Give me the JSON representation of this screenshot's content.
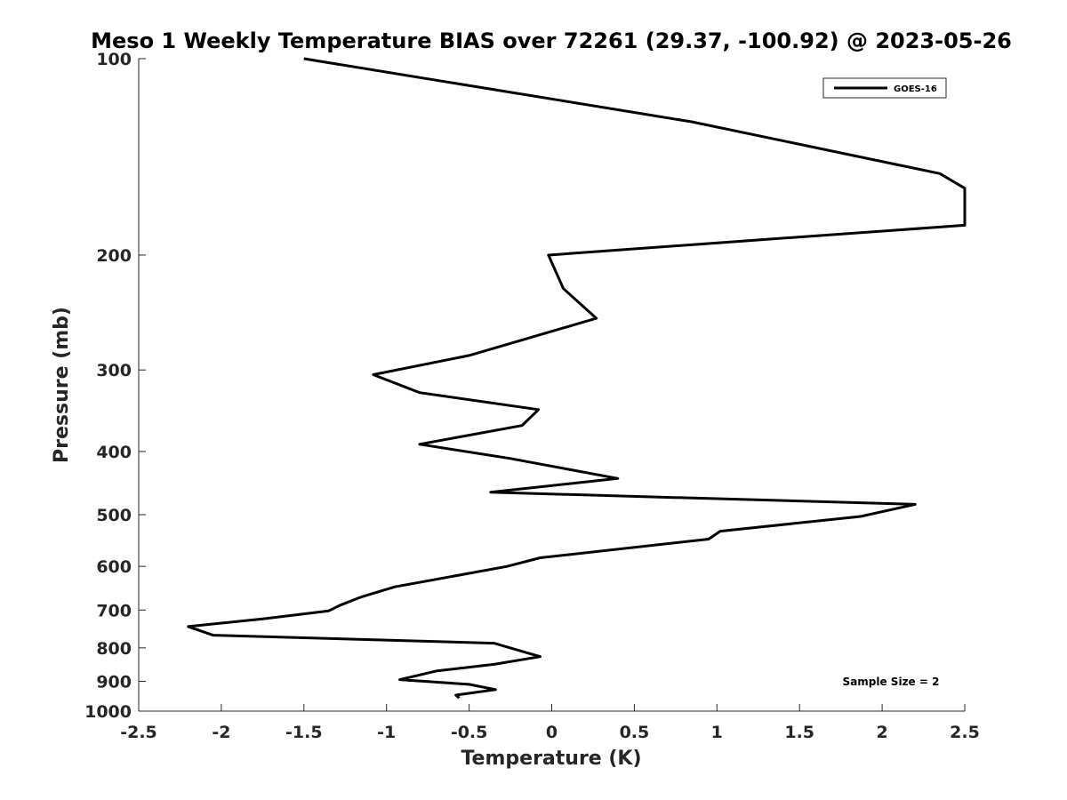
{
  "chart_data": {
    "type": "line",
    "title": "Meso 1 Weekly Temperature BIAS over 72261 (29.37, -100.92) @ 2023-05-26",
    "xlabel": "Temperature (K)",
    "ylabel": "Pressure (mb)",
    "xlim": [
      -2.5,
      2.5
    ],
    "ylim": [
      100,
      1000
    ],
    "yscale": "log",
    "y_reversed": true,
    "grid": false,
    "legend_position": "top-right",
    "x_ticks": [
      -2.5,
      -2,
      -1.5,
      -1,
      -0.5,
      0,
      0.5,
      1,
      1.5,
      2,
      2.5
    ],
    "x_tick_labels": [
      "-2.5",
      "-2",
      "-1.5",
      "-1",
      "-0.5",
      "0",
      "0.5",
      "1",
      "1.5",
      "2",
      "2.5"
    ],
    "y_ticks": [
      100,
      200,
      300,
      400,
      500,
      600,
      700,
      800,
      900,
      1000
    ],
    "y_tick_labels": [
      "100",
      "200",
      "300",
      "400",
      "500",
      "600",
      "700",
      "800",
      "900",
      "1000"
    ],
    "series": [
      {
        "name": "GOES-16",
        "color": "#000000",
        "points": [
          [
            -1.5,
            100
          ],
          [
            0.85,
            125
          ],
          [
            2.35,
            150
          ],
          [
            2.5,
            158
          ],
          [
            2.5,
            180
          ],
          [
            1.2,
            190
          ],
          [
            -0.02,
            200
          ],
          [
            0.07,
            225
          ],
          [
            0.27,
            250
          ],
          [
            -0.5,
            285
          ],
          [
            -1.08,
            305
          ],
          [
            -0.8,
            325
          ],
          [
            -0.08,
            345
          ],
          [
            -0.18,
            365
          ],
          [
            -0.8,
            390
          ],
          [
            -0.25,
            410
          ],
          [
            0.4,
            440
          ],
          [
            -0.37,
            462
          ],
          [
            2.2,
            482
          ],
          [
            1.87,
            503
          ],
          [
            1.02,
            530
          ],
          [
            0.95,
            545
          ],
          [
            -0.07,
            582
          ],
          [
            -0.27,
            600
          ],
          [
            -0.95,
            645
          ],
          [
            -1.15,
            668
          ],
          [
            -1.28,
            688
          ],
          [
            -1.35,
            702
          ],
          [
            -1.75,
            722
          ],
          [
            -2.2,
            742
          ],
          [
            -2.05,
            765
          ],
          [
            -0.35,
            787
          ],
          [
            -0.07,
            825
          ],
          [
            -0.35,
            848
          ],
          [
            -0.7,
            868
          ],
          [
            -0.92,
            895
          ],
          [
            -0.5,
            910
          ],
          [
            -0.34,
            927
          ],
          [
            -0.58,
            945
          ],
          [
            -0.56,
            955
          ]
        ]
      }
    ],
    "legend": [
      "GOES-16"
    ],
    "annotation": "Sample Size = 2"
  }
}
